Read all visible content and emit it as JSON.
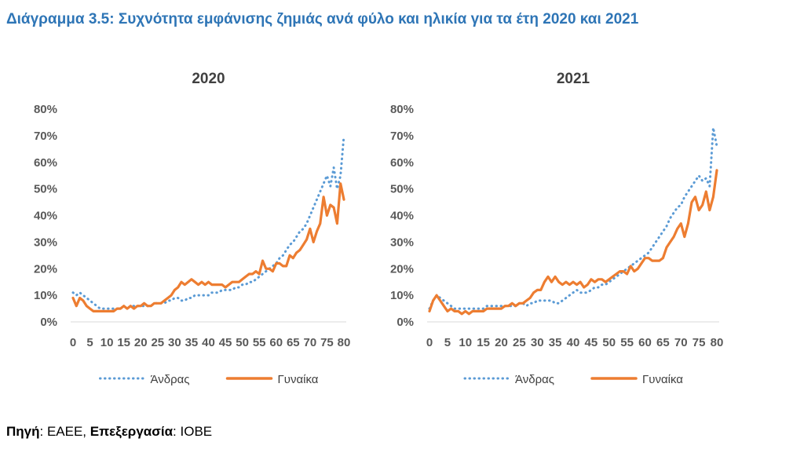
{
  "figure_title": "Διάγραμμα 3.5: Συχνότητα εμφάνισης ζημιάς ανά φύλο και ηλικία για τα έτη 2020 και 2021",
  "source": {
    "label1": "Πηγή",
    "text1": ": ΕΑΕΕ, ",
    "label2": "Επεξεργασία",
    "text2": ": ΙΟΒΕ"
  },
  "colors": {
    "male": "#5B9BD5",
    "female": "#ED7D31",
    "title": "#2E75B6"
  },
  "chart_data": [
    {
      "type": "line",
      "title": "2020",
      "xlabel": "",
      "ylabel": "",
      "x_range": [
        0,
        80
      ],
      "ylim": [
        0,
        0.8
      ],
      "y_ticks": [
        "0%",
        "10%",
        "20%",
        "30%",
        "40%",
        "50%",
        "60%",
        "70%",
        "80%"
      ],
      "x_ticks": [
        "0",
        "5",
        "10",
        "15",
        "20",
        "25",
        "30",
        "35",
        "40",
        "45",
        "50",
        "55",
        "60",
        "65",
        "70",
        "75",
        "80"
      ],
      "grid": false,
      "legend": "bottom",
      "series": [
        {
          "name": "Άνδρας",
          "style": "dotted",
          "x": [
            0,
            1,
            2,
            3,
            4,
            5,
            6,
            7,
            8,
            9,
            10,
            11,
            12,
            13,
            14,
            15,
            16,
            17,
            18,
            19,
            20,
            21,
            22,
            23,
            24,
            25,
            26,
            27,
            28,
            29,
            30,
            31,
            32,
            33,
            34,
            35,
            36,
            37,
            38,
            39,
            40,
            41,
            42,
            43,
            44,
            45,
            46,
            47,
            48,
            49,
            50,
            51,
            52,
            53,
            54,
            55,
            56,
            57,
            58,
            59,
            60,
            61,
            62,
            63,
            64,
            65,
            66,
            67,
            68,
            69,
            70,
            71,
            72,
            73,
            74,
            75,
            76,
            77,
            78,
            79,
            80
          ],
          "values": [
            0.11,
            0.1,
            0.11,
            0.1,
            0.09,
            0.08,
            0.07,
            0.06,
            0.05,
            0.05,
            0.05,
            0.05,
            0.05,
            0.05,
            0.05,
            0.06,
            0.05,
            0.06,
            0.06,
            0.06,
            0.06,
            0.06,
            0.06,
            0.06,
            0.07,
            0.07,
            0.07,
            0.07,
            0.08,
            0.08,
            0.09,
            0.09,
            0.08,
            0.08,
            0.09,
            0.09,
            0.1,
            0.1,
            0.1,
            0.1,
            0.1,
            0.11,
            0.11,
            0.11,
            0.12,
            0.12,
            0.12,
            0.12,
            0.13,
            0.13,
            0.14,
            0.14,
            0.15,
            0.15,
            0.16,
            0.17,
            0.18,
            0.19,
            0.2,
            0.21,
            0.22,
            0.24,
            0.25,
            0.27,
            0.29,
            0.3,
            0.32,
            0.34,
            0.35,
            0.37,
            0.4,
            0.43,
            0.46,
            0.49,
            0.52,
            0.55,
            0.51,
            0.58,
            0.5,
            0.55,
            0.7
          ]
        },
        {
          "name": "Γυναίκα",
          "style": "solid",
          "x": [
            0,
            1,
            2,
            3,
            4,
            5,
            6,
            7,
            8,
            9,
            10,
            11,
            12,
            13,
            14,
            15,
            16,
            17,
            18,
            19,
            20,
            21,
            22,
            23,
            24,
            25,
            26,
            27,
            28,
            29,
            30,
            31,
            32,
            33,
            34,
            35,
            36,
            37,
            38,
            39,
            40,
            41,
            42,
            43,
            44,
            45,
            46,
            47,
            48,
            49,
            50,
            51,
            52,
            53,
            54,
            55,
            56,
            57,
            58,
            59,
            60,
            61,
            62,
            63,
            64,
            65,
            66,
            67,
            68,
            69,
            70,
            71,
            72,
            73,
            74,
            75,
            76,
            77,
            78,
            79,
            80
          ],
          "values": [
            0.09,
            0.06,
            0.09,
            0.08,
            0.06,
            0.05,
            0.04,
            0.04,
            0.04,
            0.04,
            0.04,
            0.04,
            0.04,
            0.05,
            0.05,
            0.06,
            0.05,
            0.06,
            0.05,
            0.06,
            0.06,
            0.07,
            0.06,
            0.06,
            0.07,
            0.07,
            0.07,
            0.08,
            0.09,
            0.1,
            0.12,
            0.13,
            0.15,
            0.14,
            0.15,
            0.16,
            0.15,
            0.14,
            0.15,
            0.14,
            0.15,
            0.14,
            0.14,
            0.14,
            0.14,
            0.13,
            0.14,
            0.15,
            0.15,
            0.15,
            0.16,
            0.17,
            0.18,
            0.18,
            0.19,
            0.18,
            0.23,
            0.2,
            0.2,
            0.19,
            0.22,
            0.22,
            0.21,
            0.21,
            0.25,
            0.24,
            0.26,
            0.27,
            0.29,
            0.31,
            0.35,
            0.3,
            0.34,
            0.37,
            0.47,
            0.4,
            0.44,
            0.43,
            0.37,
            0.52,
            0.46
          ]
        }
      ]
    },
    {
      "type": "line",
      "title": "2021",
      "xlabel": "",
      "ylabel": "",
      "x_range": [
        0,
        80
      ],
      "ylim": [
        0,
        0.8
      ],
      "y_ticks": [
        "0%",
        "10%",
        "20%",
        "30%",
        "40%",
        "50%",
        "60%",
        "70%",
        "80%"
      ],
      "x_ticks": [
        "0",
        "5",
        "10",
        "15",
        "20",
        "25",
        "30",
        "35",
        "40",
        "45",
        "50",
        "55",
        "60",
        "65",
        "70",
        "75",
        "80"
      ],
      "grid": false,
      "legend": "bottom",
      "series": [
        {
          "name": "Άνδρας",
          "style": "dotted",
          "x": [
            0,
            1,
            2,
            3,
            4,
            5,
            6,
            7,
            8,
            9,
            10,
            11,
            12,
            13,
            14,
            15,
            16,
            17,
            18,
            19,
            20,
            21,
            22,
            23,
            24,
            25,
            26,
            27,
            28,
            29,
            30,
            31,
            32,
            33,
            34,
            35,
            36,
            37,
            38,
            39,
            40,
            41,
            42,
            43,
            44,
            45,
            46,
            47,
            48,
            49,
            50,
            51,
            52,
            53,
            54,
            55,
            56,
            57,
            58,
            59,
            60,
            61,
            62,
            63,
            64,
            65,
            66,
            67,
            68,
            69,
            70,
            71,
            72,
            73,
            74,
            75,
            76,
            77,
            78,
            79,
            80
          ],
          "values": [
            0.05,
            0.08,
            0.1,
            0.09,
            0.08,
            0.07,
            0.06,
            0.05,
            0.05,
            0.05,
            0.05,
            0.05,
            0.05,
            0.05,
            0.05,
            0.05,
            0.06,
            0.06,
            0.06,
            0.06,
            0.06,
            0.06,
            0.06,
            0.06,
            0.06,
            0.07,
            0.07,
            0.06,
            0.07,
            0.07,
            0.08,
            0.08,
            0.08,
            0.08,
            0.08,
            0.07,
            0.07,
            0.08,
            0.09,
            0.1,
            0.11,
            0.12,
            0.11,
            0.11,
            0.11,
            0.12,
            0.13,
            0.13,
            0.14,
            0.14,
            0.15,
            0.16,
            0.17,
            0.18,
            0.19,
            0.2,
            0.21,
            0.22,
            0.23,
            0.24,
            0.25,
            0.26,
            0.28,
            0.3,
            0.32,
            0.34,
            0.36,
            0.39,
            0.41,
            0.43,
            0.44,
            0.47,
            0.49,
            0.51,
            0.53,
            0.55,
            0.53,
            0.54,
            0.51,
            0.73,
            0.66
          ]
        },
        {
          "name": "Γυναίκα",
          "style": "solid",
          "x": [
            0,
            1,
            2,
            3,
            4,
            5,
            6,
            7,
            8,
            9,
            10,
            11,
            12,
            13,
            14,
            15,
            16,
            17,
            18,
            19,
            20,
            21,
            22,
            23,
            24,
            25,
            26,
            27,
            28,
            29,
            30,
            31,
            32,
            33,
            34,
            35,
            36,
            37,
            38,
            39,
            40,
            41,
            42,
            43,
            44,
            45,
            46,
            47,
            48,
            49,
            50,
            51,
            52,
            53,
            54,
            55,
            56,
            57,
            58,
            59,
            60,
            61,
            62,
            63,
            64,
            65,
            66,
            67,
            68,
            69,
            70,
            71,
            72,
            73,
            74,
            75,
            76,
            77,
            78,
            79,
            80
          ],
          "values": [
            0.04,
            0.08,
            0.1,
            0.08,
            0.06,
            0.04,
            0.05,
            0.04,
            0.04,
            0.03,
            0.04,
            0.03,
            0.04,
            0.04,
            0.04,
            0.04,
            0.05,
            0.05,
            0.05,
            0.05,
            0.05,
            0.06,
            0.06,
            0.07,
            0.06,
            0.07,
            0.07,
            0.08,
            0.09,
            0.11,
            0.12,
            0.12,
            0.15,
            0.17,
            0.15,
            0.17,
            0.15,
            0.14,
            0.15,
            0.14,
            0.15,
            0.14,
            0.15,
            0.13,
            0.14,
            0.16,
            0.15,
            0.16,
            0.16,
            0.15,
            0.16,
            0.17,
            0.18,
            0.19,
            0.19,
            0.18,
            0.21,
            0.19,
            0.2,
            0.22,
            0.24,
            0.24,
            0.23,
            0.23,
            0.23,
            0.24,
            0.28,
            0.3,
            0.32,
            0.35,
            0.37,
            0.32,
            0.37,
            0.45,
            0.47,
            0.42,
            0.44,
            0.49,
            0.42,
            0.47,
            0.57
          ]
        }
      ]
    }
  ]
}
